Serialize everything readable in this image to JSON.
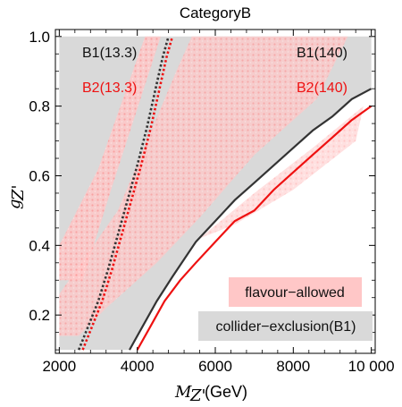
{
  "chart_data": {
    "type": "area",
    "title": "CategoryB",
    "xlabel": {
      "symbol": "M",
      "subscript": "Z'",
      "unit": "(GeV)"
    },
    "ylabel": {
      "symbol": "g",
      "subscript": "Z'"
    },
    "xlim": [
      1900,
      10100
    ],
    "ylim": [
      0.09,
      1.02
    ],
    "xticks": [
      2000,
      4000,
      6000,
      8000,
      10000
    ],
    "xtick_labels": [
      "2000",
      "4000",
      "6000",
      "8000",
      "10 000"
    ],
    "yticks": [
      0.2,
      0.4,
      0.6,
      0.8,
      1.0
    ],
    "ytick_labels": [
      "0.2",
      "0.4",
      "0.6",
      "0.8",
      "1.0"
    ],
    "grid": false,
    "colors": {
      "collider_fill": "#d9d9d9",
      "flavour_fill": "#ffb3b3",
      "b1": "#333333",
      "b2": "#ee1111"
    },
    "series": [
      {
        "name": "B1(13.3)",
        "style": "dotted",
        "color": "#333333",
        "x": [
          2500,
          2750,
          3000,
          3250,
          3500,
          3750,
          4000,
          4250,
          4450,
          4650,
          4800
        ],
        "y": [
          0.1,
          0.17,
          0.24,
          0.33,
          0.43,
          0.53,
          0.63,
          0.74,
          0.84,
          0.94,
          1.0
        ]
      },
      {
        "name": "B2(13.3)",
        "style": "dotted",
        "color": "#ee1111",
        "x": [
          2600,
          2850,
          3100,
          3350,
          3600,
          3850,
          4100,
          4350,
          4550,
          4750,
          4900
        ],
        "y": [
          0.1,
          0.17,
          0.24,
          0.33,
          0.43,
          0.53,
          0.63,
          0.74,
          0.84,
          0.94,
          1.0
        ]
      },
      {
        "name": "B1(140)",
        "style": "solid",
        "color": "#333333",
        "x": [
          3800,
          4100,
          4500,
          4900,
          5200,
          5500,
          6000,
          6500,
          7000,
          7500,
          8000,
          8500,
          9000,
          9500,
          10000
        ],
        "y": [
          0.1,
          0.16,
          0.24,
          0.31,
          0.36,
          0.41,
          0.47,
          0.53,
          0.58,
          0.63,
          0.68,
          0.73,
          0.77,
          0.82,
          0.85
        ]
      },
      {
        "name": "B2(140)",
        "style": "solid",
        "color": "#ee1111",
        "x": [
          4000,
          4300,
          4700,
          5100,
          5500,
          6000,
          6500,
          7000,
          7500,
          8000,
          8500,
          9000,
          9500,
          10000
        ],
        "y": [
          0.1,
          0.16,
          0.24,
          0.3,
          0.35,
          0.41,
          0.47,
          0.5,
          0.56,
          0.61,
          0.66,
          0.71,
          0.76,
          0.8
        ]
      }
    ],
    "regions": [
      {
        "name": "collider-exclusion(B1)",
        "color": "#d9d9d9"
      },
      {
        "name": "flavour-allowed",
        "color": "#ffb3b3"
      }
    ],
    "legend_labels": {
      "b1_low": "B1(13.3)",
      "b2_low": "B2(13.3)",
      "b1_high": "B1(140)",
      "b2_high": "B2(140)",
      "flavour": "flavour−allowed",
      "collider": "collider−exclusion(B1)"
    }
  }
}
